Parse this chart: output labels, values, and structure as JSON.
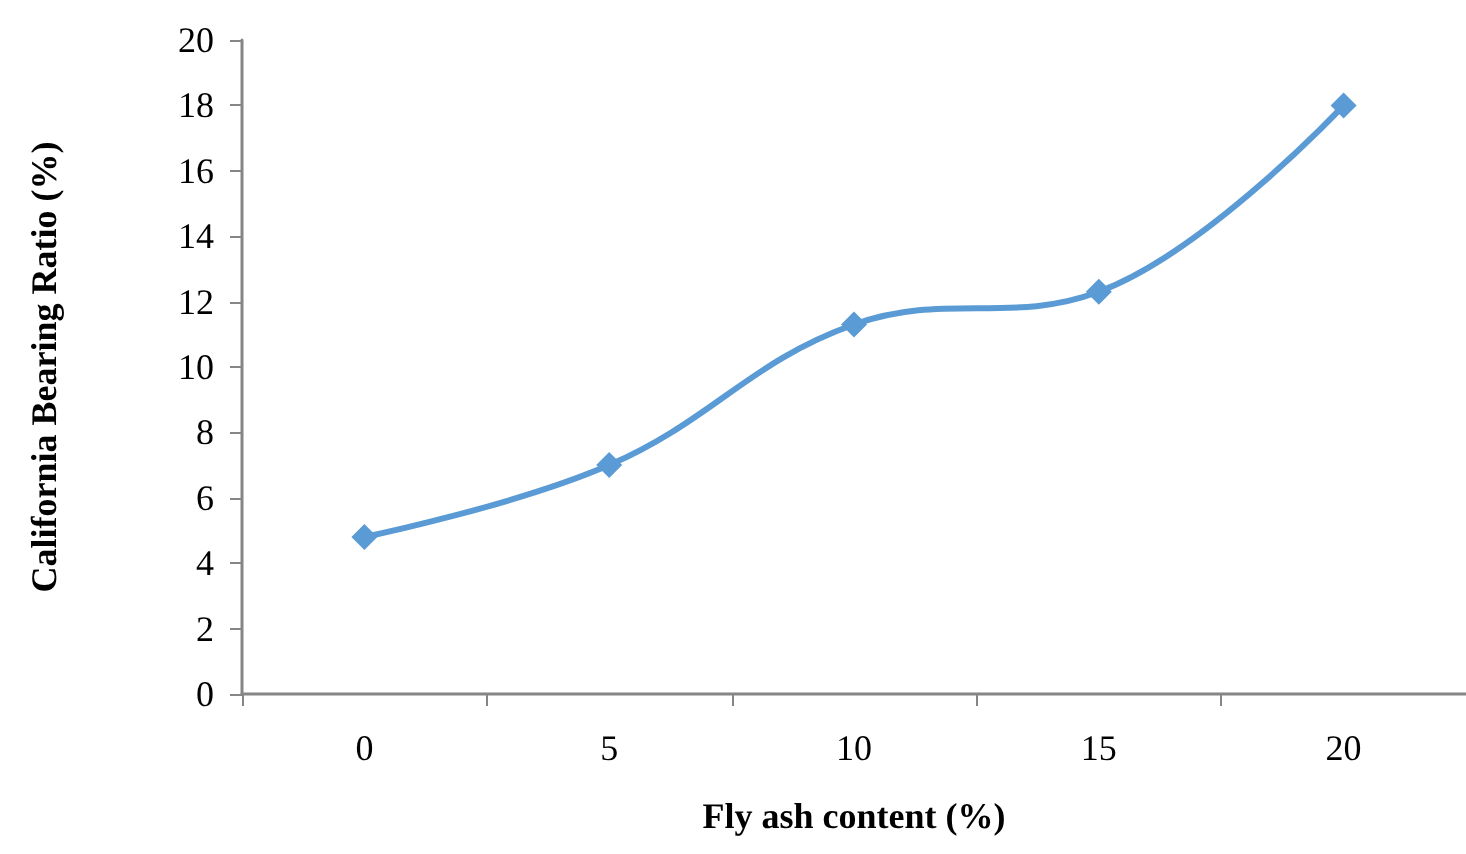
{
  "chart_data": {
    "type": "line",
    "xlabel": "Fly ash content (%)",
    "ylabel": "California Bearing Ratio (%)",
    "categories": [
      "0",
      "5",
      "10",
      "15",
      "20"
    ],
    "series": [
      {
        "color": "#5b9bd5",
        "values": [
          4.8,
          7.0,
          11.3,
          12.3,
          18.0
        ]
      }
    ],
    "ylim": [
      0,
      20
    ],
    "yticks": [
      0,
      2,
      4,
      6,
      8,
      10,
      12,
      14,
      16,
      18,
      20
    ],
    "grid": false,
    "marker": "diamond",
    "line_style": "solid"
  }
}
